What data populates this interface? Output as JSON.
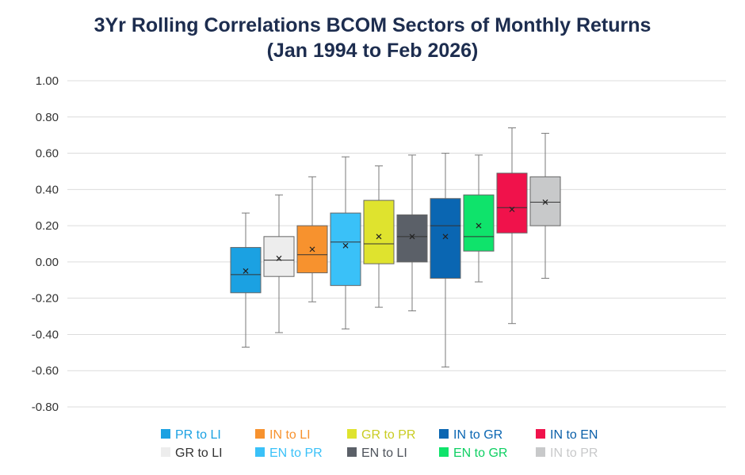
{
  "chart_data": {
    "type": "boxplot",
    "title": "3Yr Rolling Correlations BCOM Sectors of Monthly Returns",
    "subtitle": "(Jan 1994 to Feb 2026)",
    "xlabel": "",
    "ylabel": "",
    "ylim": [
      -0.8,
      1.0
    ],
    "y_ticks": [
      1.0,
      0.8,
      0.6,
      0.4,
      0.2,
      0.0,
      -0.2,
      -0.4,
      -0.6,
      -0.8
    ],
    "y_tick_labels": [
      "1.00",
      "0.80",
      "0.60",
      "0.40",
      "0.20",
      "0.00",
      "-0.20",
      "-0.40",
      "-0.60",
      "-0.80"
    ],
    "grid": true,
    "legend_position": "bottom",
    "series": [
      {
        "name": "PR to LI",
        "color": "#1ba1e2",
        "min": -0.47,
        "q1": -0.17,
        "median": -0.07,
        "q3": 0.08,
        "max": 0.27,
        "mean": -0.05
      },
      {
        "name": "GR to LI",
        "color": "#ededed",
        "min": -0.39,
        "q1": -0.08,
        "median": 0.01,
        "q3": 0.14,
        "max": 0.37,
        "mean": 0.02
      },
      {
        "name": "IN to LI",
        "color": "#f7922e",
        "min": -0.22,
        "q1": -0.06,
        "median": 0.04,
        "q3": 0.2,
        "max": 0.47,
        "mean": 0.07
      },
      {
        "name": "EN to PR",
        "color": "#3ac1f8",
        "min": -0.37,
        "q1": -0.13,
        "median": 0.11,
        "q3": 0.27,
        "max": 0.58,
        "mean": 0.09
      },
      {
        "name": "GR to PR",
        "color": "#dfe32e",
        "min": -0.25,
        "q1": -0.01,
        "median": 0.1,
        "q3": 0.34,
        "max": 0.53,
        "mean": 0.14
      },
      {
        "name": "EN to LI",
        "color": "#5b6068",
        "min": -0.27,
        "q1": -0.0,
        "median": 0.14,
        "q3": 0.26,
        "max": 0.59,
        "mean": 0.14
      },
      {
        "name": "IN to GR",
        "color": "#0a66b2",
        "min": -0.58,
        "q1": -0.09,
        "median": 0.2,
        "q3": 0.35,
        "max": 0.6,
        "mean": 0.14
      },
      {
        "name": "EN to GR",
        "color": "#0fe36b",
        "min": -0.11,
        "q1": 0.06,
        "median": 0.14,
        "q3": 0.37,
        "max": 0.59,
        "mean": 0.2
      },
      {
        "name": "IN to EN",
        "color": "#f0124b",
        "min": -0.34,
        "q1": 0.16,
        "median": 0.3,
        "q3": 0.49,
        "max": 0.74,
        "mean": 0.29
      },
      {
        "name": "IN to PR",
        "color": "#c8c9ca",
        "min": -0.09,
        "q1": 0.2,
        "median": 0.33,
        "q3": 0.47,
        "max": 0.71,
        "mean": 0.33
      }
    ],
    "legend": {
      "rows": [
        [
          "PR to LI",
          "IN to LI",
          "GR to PR",
          "IN to GR",
          "IN to EN"
        ],
        [
          "GR to LI",
          "EN to PR",
          "EN to LI",
          "EN to GR",
          "IN to PR"
        ]
      ],
      "text_colors": {
        "PR to LI": "#1ba1e2",
        "IN to LI": "#f7922e",
        "GR to PR": "#c9cc22",
        "IN to GR": "#0a66b2",
        "IN to EN": "#0a5fa8",
        "GR to LI": "#333333",
        "EN to PR": "#3ac1f8",
        "EN to LI": "#4e535b",
        "EN to GR": "#0fd063",
        "IN to PR": "#c8c9ca"
      }
    }
  }
}
